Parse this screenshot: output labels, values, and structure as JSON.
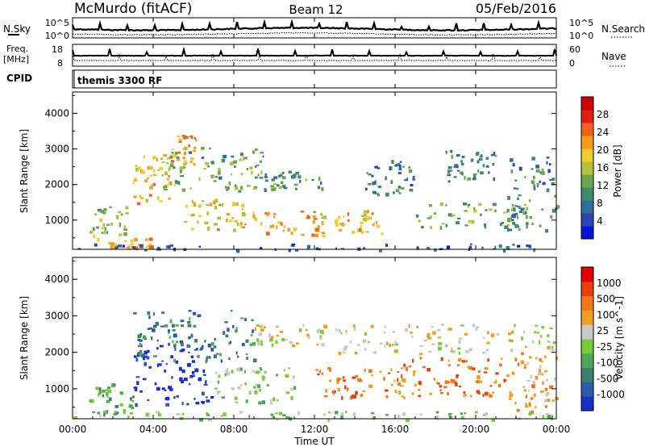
{
  "header": {
    "station": "McMurdo (fitACF)",
    "beam": "Beam 12",
    "date": "05/Feb/2016"
  },
  "summary_panels": {
    "nsky_label": "N.Sky",
    "nsky_ticks": [
      "10^5",
      "10^0"
    ],
    "nsearch_label": "N.Search",
    "nsearch_ticks": [
      "10^5",
      "10^0"
    ],
    "freq_label_1": "Freq.",
    "freq_label_2": "[MHz]",
    "freq_ticks": [
      "18",
      "8"
    ],
    "nave_label": "Nave",
    "nave_ticks": [
      "60",
      "0"
    ],
    "cpid_label": "CPID",
    "cpid_text": "themis 3300 RF"
  },
  "chart_data": [
    {
      "type": "heatmap",
      "title": "",
      "ylabel": "Slant Range [km]",
      "xlabel": "",
      "ylim": [
        180,
        4600
      ],
      "yticks": [
        "4000",
        "3000",
        "2000",
        "1000"
      ],
      "xlim_hours": [
        0,
        24
      ],
      "colorbar": {
        "label": "Power [dB]",
        "range": [
          0,
          32
        ],
        "ticks": [
          "28",
          "24",
          "20",
          "16",
          "12",
          "8",
          "4"
        ],
        "colors": [
          "#0a14d6",
          "#2a46b4",
          "#2e6e9c",
          "#3f8a6a",
          "#6aa64a",
          "#b2c23a",
          "#f0cc2c",
          "#f89a1c",
          "#f06418",
          "#e02010",
          "#d00000"
        ]
      },
      "echo_regions": [
        {
          "t": [
            0.6,
            3.8
          ],
          "r": [
            250,
            520
          ],
          "p": 22
        },
        {
          "t": [
            0.8,
            2.8
          ],
          "r": [
            600,
            1400
          ],
          "p": 14
        },
        {
          "t": [
            3.0,
            4.8
          ],
          "r": [
            1500,
            2900
          ],
          "p": 20
        },
        {
          "t": [
            4.8,
            6.2
          ],
          "r": [
            2600,
            3400
          ],
          "p": 22
        },
        {
          "t": [
            4.5,
            9.5
          ],
          "r": [
            1800,
            3100
          ],
          "p": 12
        },
        {
          "t": [
            5.5,
            8.5
          ],
          "r": [
            700,
            1600
          ],
          "p": 18
        },
        {
          "t": [
            8.5,
            12.5
          ],
          "r": [
            600,
            1300
          ],
          "p": 22
        },
        {
          "t": [
            13.0,
            15.5
          ],
          "r": [
            650,
            1300
          ],
          "p": 20
        },
        {
          "t": [
            9.5,
            12.5
          ],
          "r": [
            1900,
            2400
          ],
          "p": 10
        },
        {
          "t": [
            14.5,
            17.0
          ],
          "r": [
            1700,
            2700
          ],
          "p": 8
        },
        {
          "t": [
            17.0,
            22.5
          ],
          "r": [
            800,
            1500
          ],
          "p": 13
        },
        {
          "t": [
            18.5,
            21.0
          ],
          "r": [
            2000,
            3000
          ],
          "p": 9
        },
        {
          "t": [
            21.5,
            24.0
          ],
          "r": [
            700,
            2800
          ],
          "p": 9
        },
        {
          "t": [
            0.0,
            24.0
          ],
          "r": [
            180,
            350
          ],
          "p": 6
        }
      ]
    },
    {
      "type": "heatmap",
      "title": "",
      "ylabel": "Slant Range [km]",
      "xlabel": "Time UT",
      "ylim": [
        180,
        4600
      ],
      "yticks": [
        "4000",
        "3000",
        "2000",
        "1000"
      ],
      "xticks": [
        "00:00",
        "04:00",
        "08:00",
        "12:00",
        "16:00",
        "20:00",
        "00:00"
      ],
      "xlim_hours": [
        0,
        24
      ],
      "colorbar": {
        "label": "Velocity [m s^-1]",
        "ticks": [
          "1000",
          "500",
          "100",
          "25",
          "-25",
          "-100",
          "-500",
          "-1000"
        ],
        "colors": [
          "#1a2ecc",
          "#2a5aa8",
          "#3d7e6c",
          "#52a85a",
          "#77cc33",
          "#c8c8c8",
          "#f0a020",
          "#f07818",
          "#e84010",
          "#e00000"
        ]
      },
      "echo_regions": [
        {
          "t": [
            0.8,
            3.0
          ],
          "r": [
            300,
            1200
          ],
          "v": 3
        },
        {
          "t": [
            3.0,
            7.0
          ],
          "r": [
            600,
            2400
          ],
          "v": 0
        },
        {
          "t": [
            3.0,
            9.0
          ],
          "r": [
            1800,
            3200
          ],
          "v": 2
        },
        {
          "t": [
            7.0,
            11.0
          ],
          "r": [
            600,
            1600
          ],
          "v": 4
        },
        {
          "t": [
            9.0,
            12.5
          ],
          "r": [
            2200,
            2800
          ],
          "v": 5
        },
        {
          "t": [
            12.0,
            16.5
          ],
          "r": [
            700,
            1600
          ],
          "v": 7
        },
        {
          "t": [
            16.0,
            21.5
          ],
          "r": [
            800,
            2000
          ],
          "v": 7
        },
        {
          "t": [
            13.0,
            24.0
          ],
          "r": [
            2000,
            2800
          ],
          "v": 5
        },
        {
          "t": [
            21.5,
            24.0
          ],
          "r": [
            400,
            2000
          ],
          "v": 6
        },
        {
          "t": [
            0.0,
            24.0
          ],
          "r": [
            180,
            400
          ],
          "v": 4
        }
      ]
    }
  ]
}
